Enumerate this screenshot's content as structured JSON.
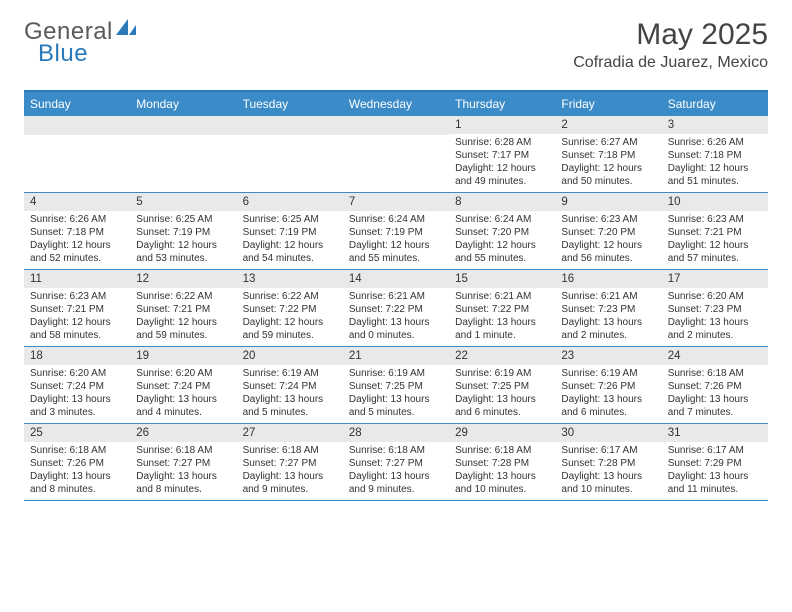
{
  "brand": {
    "general": "General",
    "blue": "Blue"
  },
  "title": "May 2025",
  "location": "Cofradia de Juarez, Mexico",
  "colors": {
    "header_bar": "#3b8bc8",
    "header_top_border": "#2a7ab9",
    "row_divider": "#3b8bc8",
    "daynum_bg": "#e9e9e9",
    "text": "#333333",
    "logo_gray": "#5a5a5a",
    "logo_blue": "#2a7ab9",
    "background": "#ffffff"
  },
  "typography": {
    "title_fontsize": 30,
    "location_fontsize": 16,
    "dow_fontsize": 12,
    "daynum_fontsize": 11.5,
    "body_fontsize": 10,
    "font_family": "Arial"
  },
  "days_of_week": [
    "Sunday",
    "Monday",
    "Tuesday",
    "Wednesday",
    "Thursday",
    "Friday",
    "Saturday"
  ],
  "weeks": [
    [
      {
        "n": "",
        "sr": "",
        "ss": "",
        "dl": ""
      },
      {
        "n": "",
        "sr": "",
        "ss": "",
        "dl": ""
      },
      {
        "n": "",
        "sr": "",
        "ss": "",
        "dl": ""
      },
      {
        "n": "",
        "sr": "",
        "ss": "",
        "dl": ""
      },
      {
        "n": "1",
        "sr": "Sunrise: 6:28 AM",
        "ss": "Sunset: 7:17 PM",
        "dl": "Daylight: 12 hours and 49 minutes."
      },
      {
        "n": "2",
        "sr": "Sunrise: 6:27 AM",
        "ss": "Sunset: 7:18 PM",
        "dl": "Daylight: 12 hours and 50 minutes."
      },
      {
        "n": "3",
        "sr": "Sunrise: 6:26 AM",
        "ss": "Sunset: 7:18 PM",
        "dl": "Daylight: 12 hours and 51 minutes."
      }
    ],
    [
      {
        "n": "4",
        "sr": "Sunrise: 6:26 AM",
        "ss": "Sunset: 7:18 PM",
        "dl": "Daylight: 12 hours and 52 minutes."
      },
      {
        "n": "5",
        "sr": "Sunrise: 6:25 AM",
        "ss": "Sunset: 7:19 PM",
        "dl": "Daylight: 12 hours and 53 minutes."
      },
      {
        "n": "6",
        "sr": "Sunrise: 6:25 AM",
        "ss": "Sunset: 7:19 PM",
        "dl": "Daylight: 12 hours and 54 minutes."
      },
      {
        "n": "7",
        "sr": "Sunrise: 6:24 AM",
        "ss": "Sunset: 7:19 PM",
        "dl": "Daylight: 12 hours and 55 minutes."
      },
      {
        "n": "8",
        "sr": "Sunrise: 6:24 AM",
        "ss": "Sunset: 7:20 PM",
        "dl": "Daylight: 12 hours and 55 minutes."
      },
      {
        "n": "9",
        "sr": "Sunrise: 6:23 AM",
        "ss": "Sunset: 7:20 PM",
        "dl": "Daylight: 12 hours and 56 minutes."
      },
      {
        "n": "10",
        "sr": "Sunrise: 6:23 AM",
        "ss": "Sunset: 7:21 PM",
        "dl": "Daylight: 12 hours and 57 minutes."
      }
    ],
    [
      {
        "n": "11",
        "sr": "Sunrise: 6:23 AM",
        "ss": "Sunset: 7:21 PM",
        "dl": "Daylight: 12 hours and 58 minutes."
      },
      {
        "n": "12",
        "sr": "Sunrise: 6:22 AM",
        "ss": "Sunset: 7:21 PM",
        "dl": "Daylight: 12 hours and 59 minutes."
      },
      {
        "n": "13",
        "sr": "Sunrise: 6:22 AM",
        "ss": "Sunset: 7:22 PM",
        "dl": "Daylight: 12 hours and 59 minutes."
      },
      {
        "n": "14",
        "sr": "Sunrise: 6:21 AM",
        "ss": "Sunset: 7:22 PM",
        "dl": "Daylight: 13 hours and 0 minutes."
      },
      {
        "n": "15",
        "sr": "Sunrise: 6:21 AM",
        "ss": "Sunset: 7:22 PM",
        "dl": "Daylight: 13 hours and 1 minute."
      },
      {
        "n": "16",
        "sr": "Sunrise: 6:21 AM",
        "ss": "Sunset: 7:23 PM",
        "dl": "Daylight: 13 hours and 2 minutes."
      },
      {
        "n": "17",
        "sr": "Sunrise: 6:20 AM",
        "ss": "Sunset: 7:23 PM",
        "dl": "Daylight: 13 hours and 2 minutes."
      }
    ],
    [
      {
        "n": "18",
        "sr": "Sunrise: 6:20 AM",
        "ss": "Sunset: 7:24 PM",
        "dl": "Daylight: 13 hours and 3 minutes."
      },
      {
        "n": "19",
        "sr": "Sunrise: 6:20 AM",
        "ss": "Sunset: 7:24 PM",
        "dl": "Daylight: 13 hours and 4 minutes."
      },
      {
        "n": "20",
        "sr": "Sunrise: 6:19 AM",
        "ss": "Sunset: 7:24 PM",
        "dl": "Daylight: 13 hours and 5 minutes."
      },
      {
        "n": "21",
        "sr": "Sunrise: 6:19 AM",
        "ss": "Sunset: 7:25 PM",
        "dl": "Daylight: 13 hours and 5 minutes."
      },
      {
        "n": "22",
        "sr": "Sunrise: 6:19 AM",
        "ss": "Sunset: 7:25 PM",
        "dl": "Daylight: 13 hours and 6 minutes."
      },
      {
        "n": "23",
        "sr": "Sunrise: 6:19 AM",
        "ss": "Sunset: 7:26 PM",
        "dl": "Daylight: 13 hours and 6 minutes."
      },
      {
        "n": "24",
        "sr": "Sunrise: 6:18 AM",
        "ss": "Sunset: 7:26 PM",
        "dl": "Daylight: 13 hours and 7 minutes."
      }
    ],
    [
      {
        "n": "25",
        "sr": "Sunrise: 6:18 AM",
        "ss": "Sunset: 7:26 PM",
        "dl": "Daylight: 13 hours and 8 minutes."
      },
      {
        "n": "26",
        "sr": "Sunrise: 6:18 AM",
        "ss": "Sunset: 7:27 PM",
        "dl": "Daylight: 13 hours and 8 minutes."
      },
      {
        "n": "27",
        "sr": "Sunrise: 6:18 AM",
        "ss": "Sunset: 7:27 PM",
        "dl": "Daylight: 13 hours and 9 minutes."
      },
      {
        "n": "28",
        "sr": "Sunrise: 6:18 AM",
        "ss": "Sunset: 7:27 PM",
        "dl": "Daylight: 13 hours and 9 minutes."
      },
      {
        "n": "29",
        "sr": "Sunrise: 6:18 AM",
        "ss": "Sunset: 7:28 PM",
        "dl": "Daylight: 13 hours and 10 minutes."
      },
      {
        "n": "30",
        "sr": "Sunrise: 6:17 AM",
        "ss": "Sunset: 7:28 PM",
        "dl": "Daylight: 13 hours and 10 minutes."
      },
      {
        "n": "31",
        "sr": "Sunrise: 6:17 AM",
        "ss": "Sunset: 7:29 PM",
        "dl": "Daylight: 13 hours and 11 minutes."
      }
    ]
  ]
}
